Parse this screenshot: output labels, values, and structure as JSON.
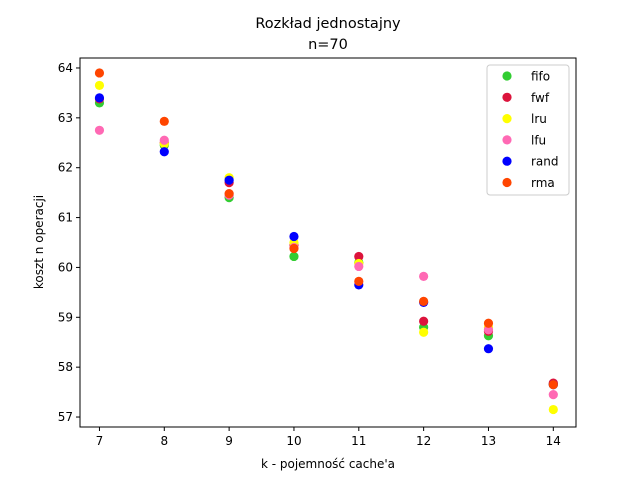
{
  "chart_data": {
    "type": "scatter",
    "title": "Rozkład jednostajny",
    "subtitle": "n=70",
    "xlabel": "k - pojemność cache'a",
    "ylabel": "koszt n operacji",
    "xlim": [
      6.7,
      14.35
    ],
    "ylim": [
      56.8,
      64.2
    ],
    "x_ticks": [
      7,
      8,
      9,
      10,
      11,
      12,
      13,
      14
    ],
    "y_ticks": [
      57,
      58,
      59,
      60,
      61,
      62,
      63,
      64
    ],
    "grid": false,
    "legend_position": "top-right",
    "series": [
      {
        "name": "fifo",
        "color": "#32cd32",
        "x": [
          7,
          8,
          9,
          10,
          11,
          12,
          13,
          14
        ],
        "y": [
          63.3,
          62.45,
          61.4,
          60.22,
          60.1,
          58.8,
          58.63,
          57.65
        ]
      },
      {
        "name": "fwf",
        "color": "#dc143c",
        "x": [
          7,
          8,
          9,
          10,
          11,
          12,
          13,
          14
        ],
        "y": [
          63.38,
          62.5,
          61.7,
          60.45,
          60.22,
          58.92,
          58.72,
          57.68
        ]
      },
      {
        "name": "lru",
        "color": "#ffff00",
        "x": [
          7,
          8,
          9,
          10,
          11,
          12,
          13,
          14
        ],
        "y": [
          63.65,
          62.48,
          61.8,
          60.5,
          60.08,
          58.7,
          58.8,
          57.15
        ]
      },
      {
        "name": "lfu",
        "color": "#ff69b4",
        "x": [
          7,
          8,
          9,
          10,
          11,
          12,
          13,
          14
        ],
        "y": [
          62.75,
          62.55,
          61.45,
          60.4,
          60.02,
          59.82,
          58.75,
          57.45
        ]
      },
      {
        "name": "rand",
        "color": "#0000ff",
        "x": [
          7,
          8,
          9,
          10,
          11,
          12,
          13,
          14
        ],
        "y": [
          63.4,
          62.32,
          61.75,
          60.62,
          59.65,
          59.3,
          58.37,
          57.65
        ]
      },
      {
        "name": "rma",
        "color": "#ff4500",
        "x": [
          7,
          8,
          9,
          10,
          11,
          12,
          13,
          14
        ],
        "y": [
          63.9,
          62.93,
          61.48,
          60.38,
          59.72,
          59.32,
          58.88,
          57.65
        ]
      }
    ]
  }
}
